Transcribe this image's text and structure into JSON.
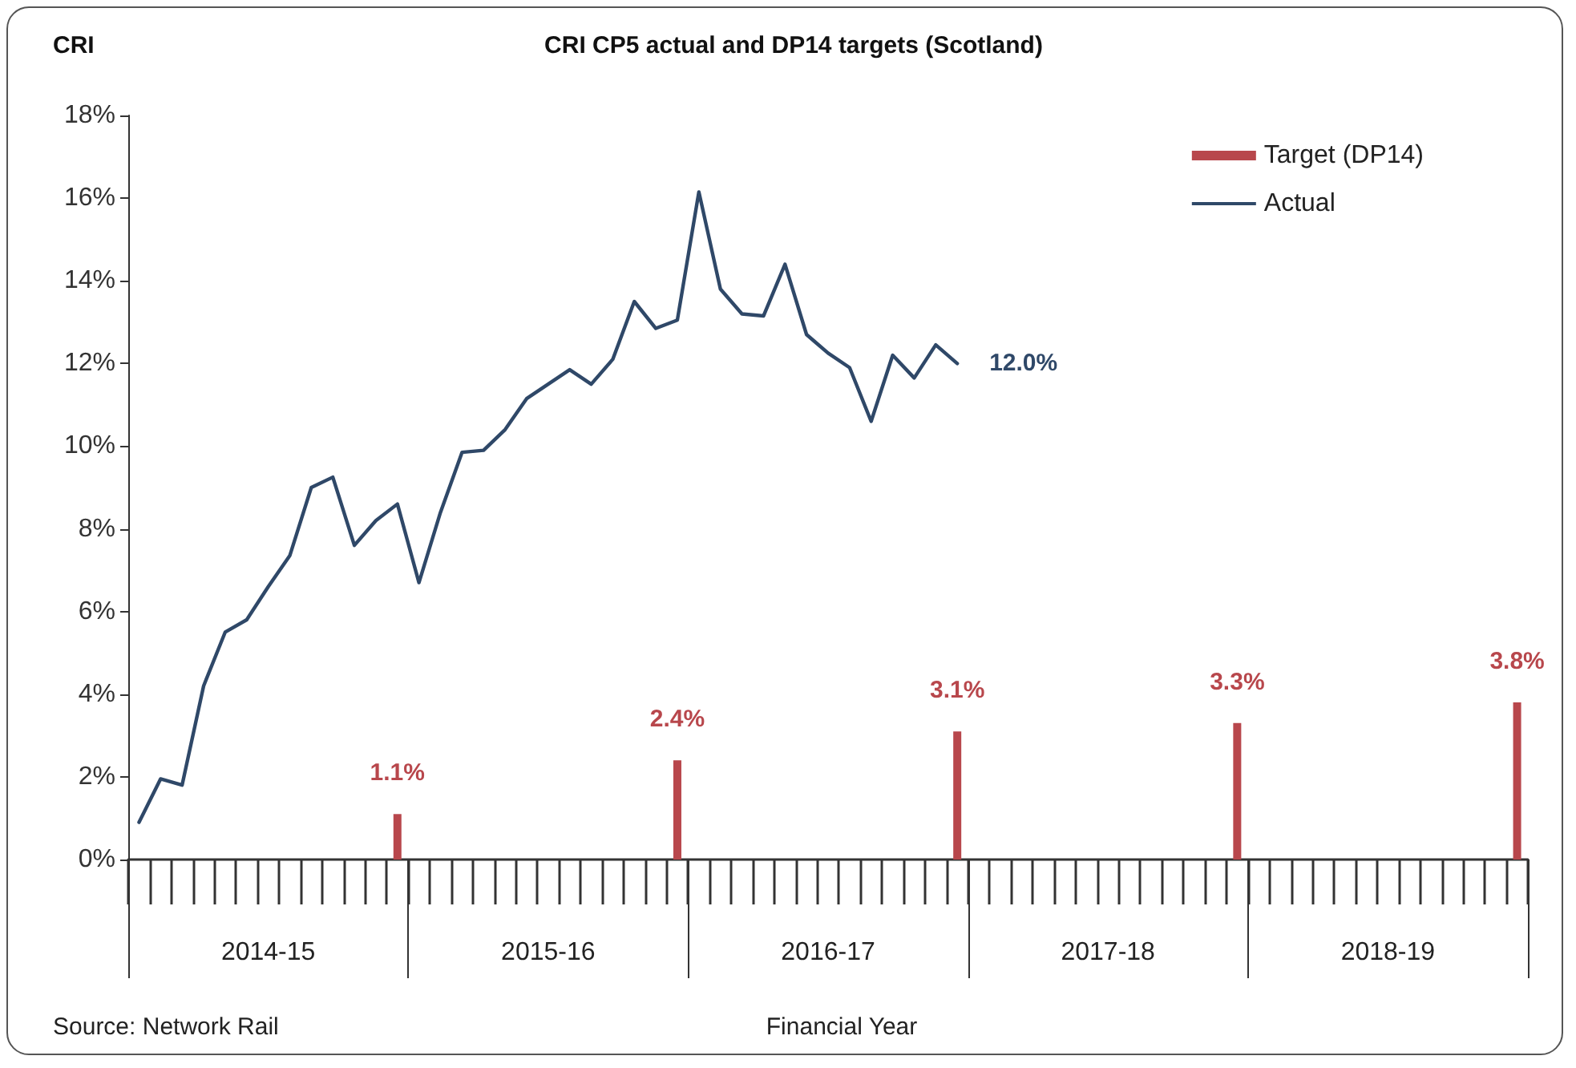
{
  "chart_data": {
    "type": "bar",
    "title": "CRI CP5 actual and DP14 targets (Scotland)",
    "ylabel": "CRI",
    "xlabel": "Financial Year",
    "annotations": [
      "Source: Network Rail"
    ],
    "categories": [
      null,
      null,
      null,
      null,
      null,
      null,
      "2014-15",
      null,
      null,
      null,
      null,
      null,
      null,
      null,
      null,
      null,
      null,
      null,
      null,
      "2015-16",
      null,
      null,
      null,
      null,
      null,
      null,
      null,
      null,
      null,
      null,
      null,
      null,
      "2016-17",
      null,
      null,
      null,
      null,
      null,
      null,
      null,
      null,
      null,
      null,
      null,
      null,
      "2017-18",
      null,
      null,
      null,
      null,
      null,
      null,
      null,
      null,
      null,
      null,
      null,
      null,
      "2018-19",
      null,
      null,
      null,
      null,
      null,
      null
    ],
    "ylim": [
      0,
      18
    ],
    "yticks": [
      {
        "value": 0,
        "label": "0%"
      },
      {
        "value": 2,
        "label": "2%"
      },
      {
        "value": 4,
        "label": "4%"
      },
      {
        "value": 6,
        "label": "6%"
      },
      {
        "value": 8,
        "label": "8%"
      },
      {
        "value": 10,
        "label": "10%"
      },
      {
        "value": 12,
        "label": "12%"
      },
      {
        "value": 14,
        "label": "14%"
      },
      {
        "value": 16,
        "label": "16%"
      },
      {
        "value": 18,
        "label": "18%"
      }
    ],
    "grid": false,
    "legend": "top right",
    "series": [
      {
        "name": "Target (DP14)",
        "color": "#b8474c",
        "values": [
          null,
          null,
          null,
          null,
          null,
          null,
          null,
          null,
          null,
          null,
          null,
          null,
          1.1,
          null,
          null,
          null,
          null,
          null,
          null,
          null,
          null,
          null,
          null,
          null,
          null,
          2.4,
          null,
          null,
          null,
          null,
          null,
          null,
          null,
          null,
          null,
          null,
          null,
          null,
          3.1,
          null,
          null,
          null,
          null,
          null,
          null,
          null,
          null,
          null,
          null,
          null,
          null,
          3.3,
          null,
          null,
          null,
          null,
          null,
          null,
          null,
          null,
          null,
          null,
          null,
          null,
          3.8
        ],
        "value_labels": [
          null,
          null,
          null,
          null,
          null,
          null,
          null,
          null,
          null,
          null,
          null,
          null,
          "1.1%",
          null,
          null,
          null,
          null,
          null,
          null,
          null,
          null,
          null,
          null,
          null,
          null,
          "2.4%",
          null,
          null,
          null,
          null,
          null,
          null,
          null,
          null,
          null,
          null,
          null,
          null,
          "3.1%",
          null,
          null,
          null,
          null,
          null,
          null,
          null,
          null,
          null,
          null,
          null,
          null,
          "3.3%",
          null,
          null,
          null,
          null,
          null,
          null,
          null,
          null,
          null,
          null,
          null,
          null,
          "3.8%"
        ]
      },
      {
        "name": "Actual",
        "type": "line",
        "color": "#2f4868",
        "line_style": "solid",
        "marker": "none",
        "values": [
          0.9,
          1.95,
          1.8,
          4.2,
          5.5,
          5.8,
          6.6,
          7.35,
          9.0,
          9.25,
          7.6,
          8.2,
          8.6,
          6.7,
          8.4,
          9.85,
          9.9,
          10.4,
          11.15,
          11.5,
          11.85,
          11.5,
          12.1,
          13.5,
          12.85,
          13.05,
          16.15,
          13.8,
          13.2,
          13.15,
          14.4,
          12.7,
          12.25,
          11.9,
          10.6,
          12.2,
          11.65,
          12.45,
          12.0,
          null,
          null,
          null,
          null,
          null,
          null,
          null,
          null,
          null,
          null,
          null,
          null,
          null,
          null,
          null,
          null,
          null,
          null,
          null,
          null,
          null,
          null,
          null,
          null,
          null,
          null
        ],
        "value_labels": [
          null,
          null,
          null,
          null,
          null,
          null,
          null,
          null,
          null,
          null,
          null,
          null,
          null,
          null,
          null,
          null,
          null,
          null,
          null,
          null,
          null,
          null,
          null,
          null,
          null,
          null,
          null,
          null,
          null,
          null,
          null,
          null,
          null,
          null,
          null,
          null,
          null,
          null,
          "12.0%",
          null,
          null,
          null,
          null,
          null,
          null,
          null,
          null,
          null,
          null,
          null,
          null,
          null,
          null,
          null,
          null,
          null,
          null,
          null,
          null,
          null,
          null,
          null,
          null,
          null,
          null
        ]
      }
    ]
  }
}
